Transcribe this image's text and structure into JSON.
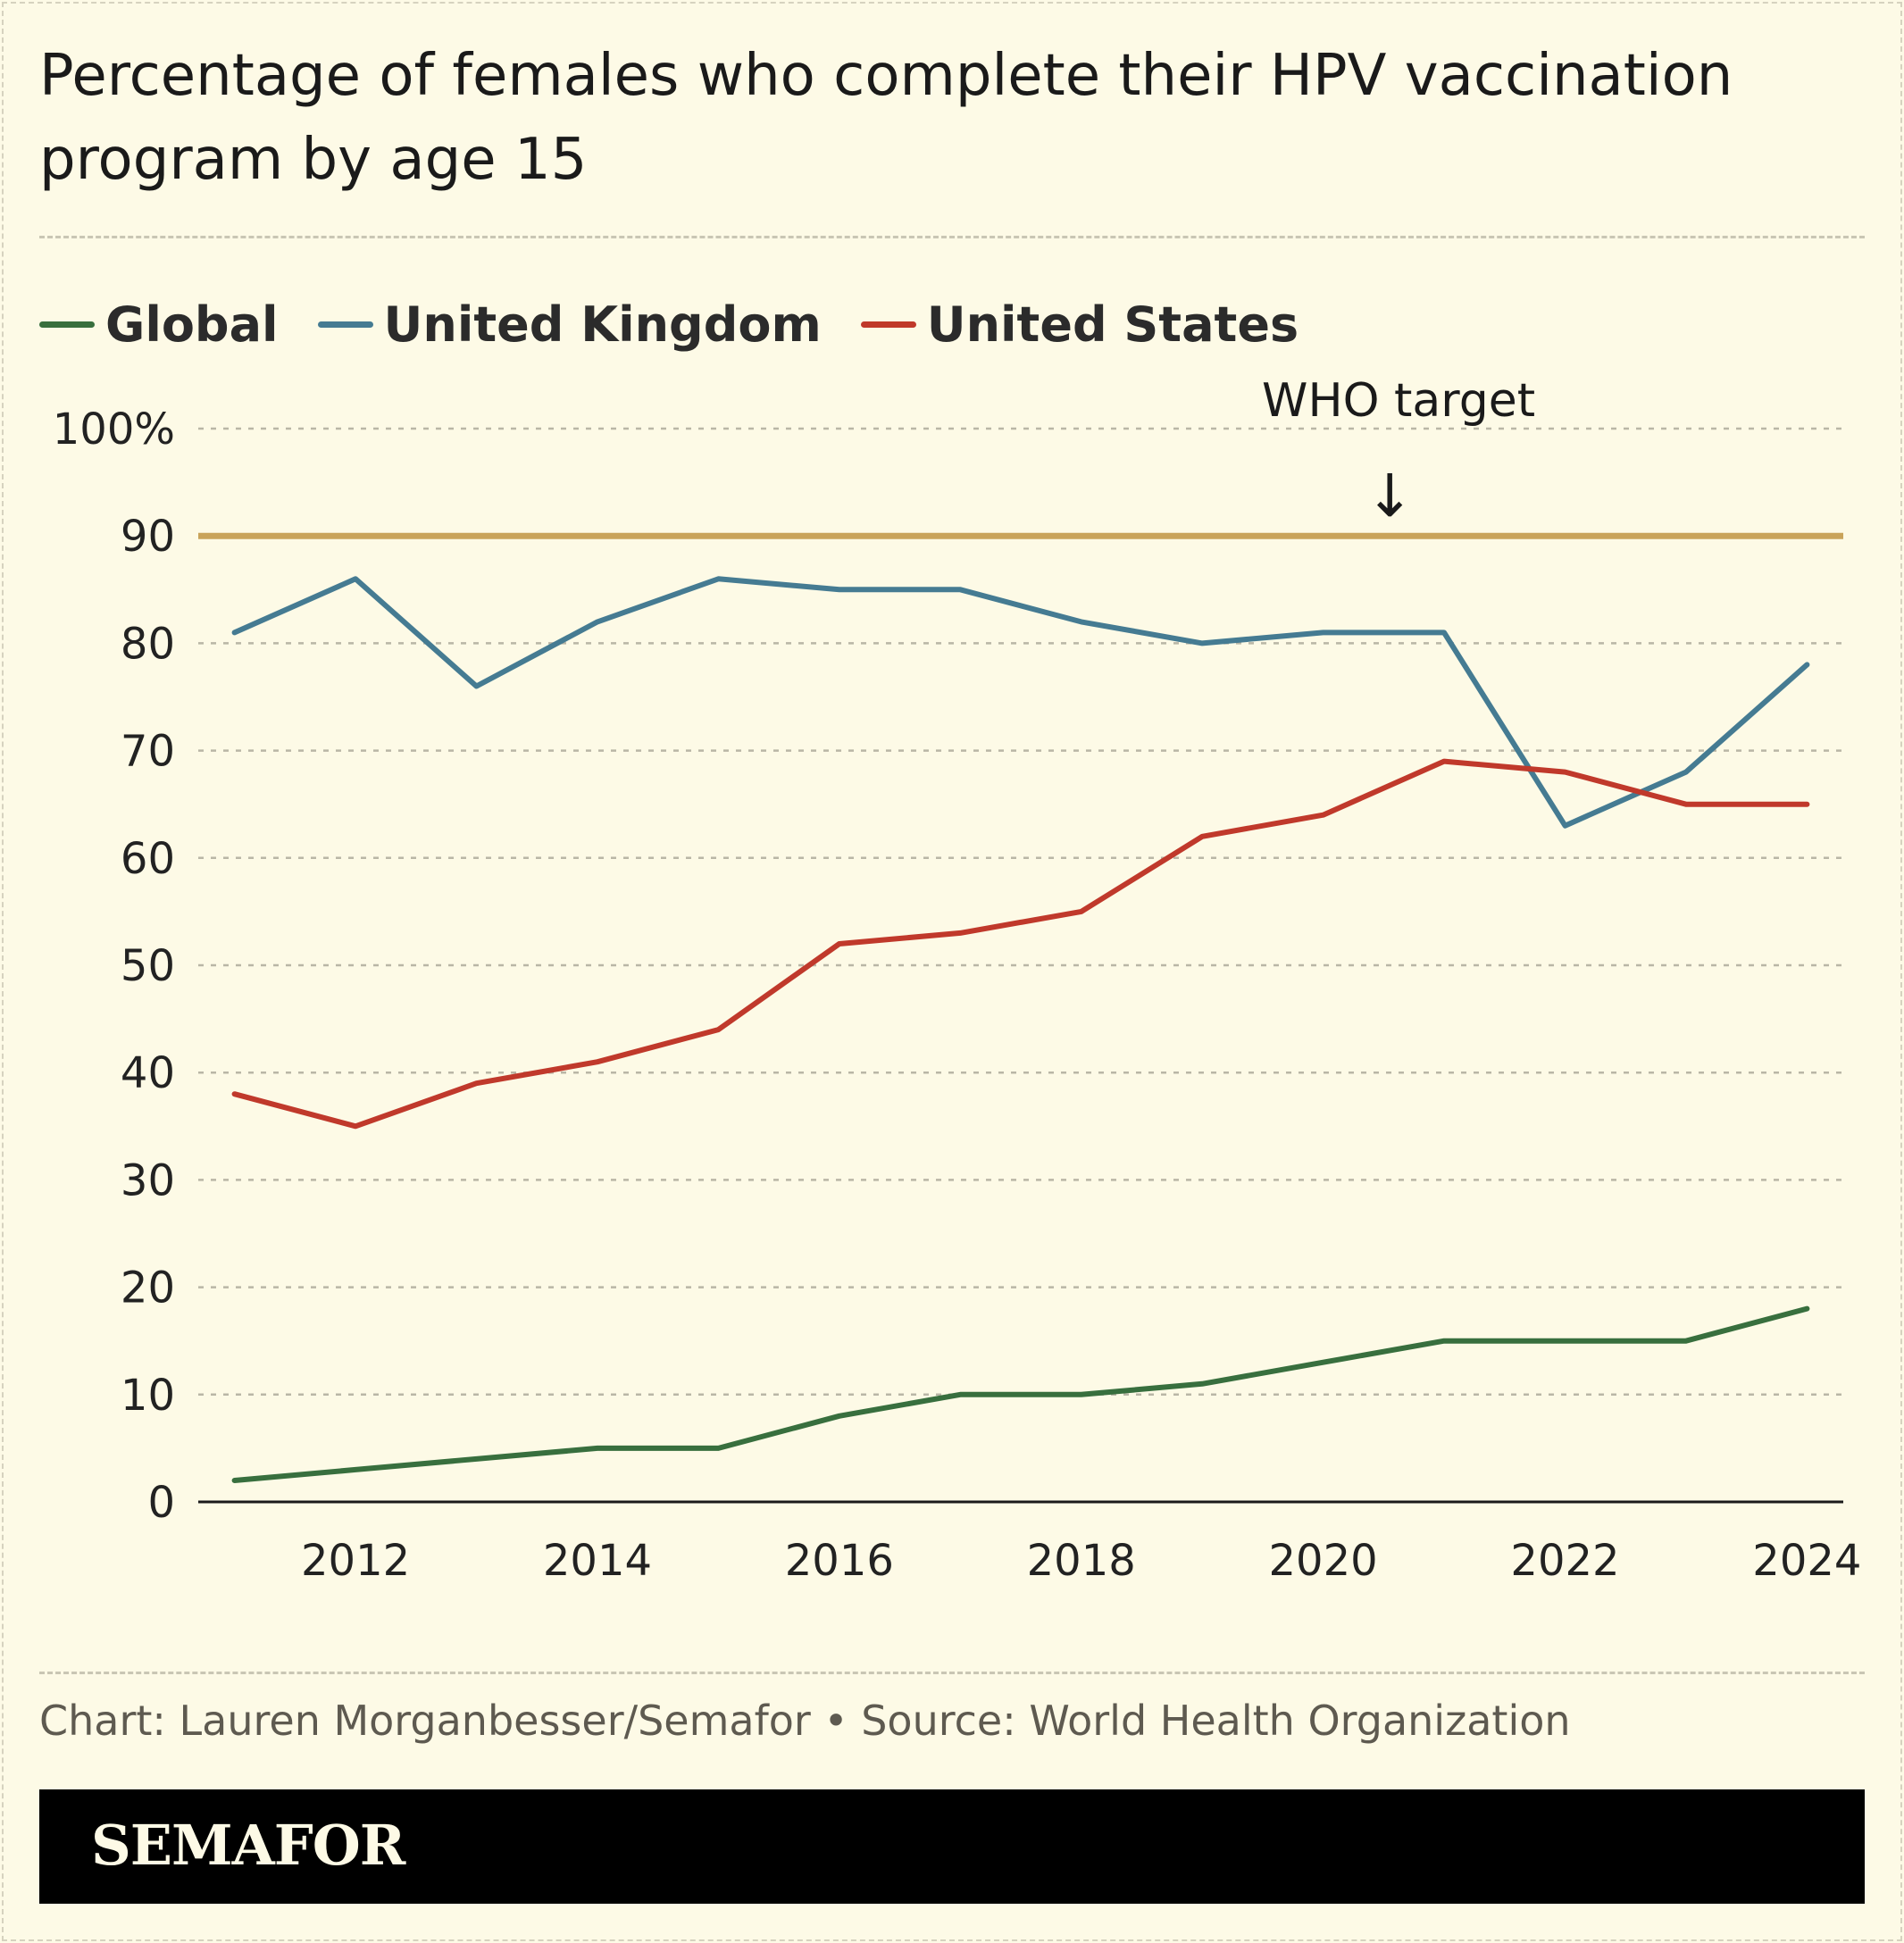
{
  "title": "Percentage of females who complete their HPV vaccination program by age 15",
  "annotation": {
    "label": "WHO target",
    "arrow": "↓"
  },
  "source": "Chart: Lauren Morganbesser/Semafor • Source: World Health Organization",
  "brand": "SEMAFOR",
  "chart_data": {
    "type": "line",
    "title": "Percentage of females who complete their HPV vaccination program by age 15",
    "xlabel": "",
    "ylabel": "",
    "x": [
      2011,
      2012,
      2013,
      2014,
      2015,
      2016,
      2017,
      2018,
      2019,
      2020,
      2021,
      2022,
      2023,
      2024
    ],
    "xlim": [
      2010.7,
      2024.3
    ],
    "ylim": [
      0,
      100
    ],
    "x_ticks": [
      2012,
      2014,
      2016,
      2018,
      2020,
      2022,
      2024
    ],
    "x_tick_labels": [
      "2012",
      "2014",
      "2016",
      "2018",
      "2020",
      "2022",
      "2024"
    ],
    "y_ticks": [
      0,
      10,
      20,
      30,
      40,
      50,
      60,
      70,
      80,
      90,
      100
    ],
    "y_tick_labels": [
      "0",
      "10",
      "20",
      "30",
      "40",
      "50",
      "60",
      "70",
      "80",
      "90",
      "100%"
    ],
    "grid": true,
    "legend_position": "top-left",
    "reference_line": {
      "y": 90,
      "label": "WHO target",
      "color": "#c9a35a"
    },
    "series": [
      {
        "name": "Global",
        "color": "#386f3e",
        "values": [
          2,
          3,
          4,
          5,
          5,
          8,
          10,
          10,
          11,
          13,
          15,
          15,
          15,
          18
        ]
      },
      {
        "name": "United Kingdom",
        "color": "#457b92",
        "values": [
          81,
          86,
          76,
          82,
          86,
          85,
          85,
          82,
          80,
          81,
          81,
          63,
          68,
          78
        ]
      },
      {
        "name": "United States",
        "color": "#c0392b",
        "values": [
          38,
          35,
          39,
          41,
          44,
          52,
          53,
          55,
          62,
          64,
          69,
          68,
          65,
          65
        ]
      }
    ]
  }
}
